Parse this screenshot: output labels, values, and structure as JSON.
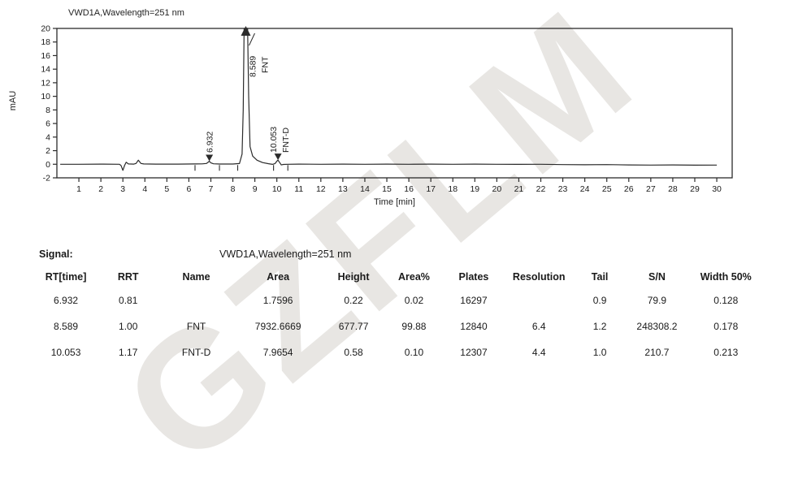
{
  "watermark": {
    "text": "GZFLM",
    "color": "#b2aba2"
  },
  "chart": {
    "title": "VWD1A,Wavelength=251 nm",
    "ylabel": "mAU",
    "xlabel": "Time [min]"
  },
  "chart_data": {
    "type": "line",
    "title": "VWD1A,Wavelength=251 nm",
    "xlabel": "Time [min]",
    "ylabel": "mAU",
    "xlim": [
      0,
      30.7
    ],
    "ylim": [
      -2,
      20
    ],
    "xticks": [
      1,
      2,
      3,
      4,
      5,
      6,
      7,
      8,
      9,
      10,
      11,
      12,
      13,
      14,
      15,
      16,
      17,
      18,
      19,
      20,
      21,
      22,
      23,
      24,
      25,
      26,
      27,
      28,
      29,
      30
    ],
    "yticks": [
      20,
      18,
      16,
      14,
      12,
      10,
      8,
      6,
      4,
      2,
      0,
      -2
    ],
    "grid": false,
    "line_color": "#2b2b2b",
    "trace": [
      [
        0.15,
        0
      ],
      [
        1,
        0
      ],
      [
        2,
        0.02
      ],
      [
        2.85,
        0
      ],
      [
        2.92,
        -0.2
      ],
      [
        3.0,
        -0.9
      ],
      [
        3.08,
        -0.15
      ],
      [
        3.15,
        0.3
      ],
      [
        3.25,
        0.05
      ],
      [
        3.5,
        0.02
      ],
      [
        3.6,
        0.12
      ],
      [
        3.7,
        0.6
      ],
      [
        3.82,
        0.12
      ],
      [
        3.95,
        0.04
      ],
      [
        4.5,
        0.02
      ],
      [
        5.5,
        0.02
      ],
      [
        6.3,
        0.05
      ],
      [
        6.6,
        0.06
      ],
      [
        6.8,
        0.12
      ],
      [
        6.88,
        0.3
      ],
      [
        6.93,
        0.45
      ],
      [
        7.0,
        0.2
      ],
      [
        7.12,
        0.07
      ],
      [
        7.4,
        0.03
      ],
      [
        8.0,
        0.03
      ],
      [
        8.3,
        0.1
      ],
      [
        8.42,
        1.5
      ],
      [
        8.47,
        8
      ],
      [
        8.51,
        60
      ],
      [
        8.67,
        60
      ],
      [
        8.72,
        10
      ],
      [
        8.78,
        2.6
      ],
      [
        8.9,
        1.2
      ],
      [
        9.1,
        0.6
      ],
      [
        9.35,
        0.25
      ],
      [
        9.62,
        0.08
      ],
      [
        9.8,
        -0.02
      ],
      [
        9.92,
        0.1
      ],
      [
        10.0,
        0.45
      ],
      [
        10.05,
        0.62
      ],
      [
        10.12,
        0.3
      ],
      [
        10.2,
        -0.1
      ],
      [
        10.3,
        -0.03
      ],
      [
        10.5,
        0
      ],
      [
        11,
        0.02
      ],
      [
        12,
        0
      ],
      [
        13,
        0.02
      ],
      [
        14,
        0
      ],
      [
        15,
        0.02
      ],
      [
        16,
        0
      ],
      [
        17,
        0.02
      ],
      [
        18,
        0
      ],
      [
        19,
        0.02
      ],
      [
        20,
        0
      ],
      [
        21,
        -0.02
      ],
      [
        22,
        0
      ],
      [
        23,
        -0.05
      ],
      [
        24,
        -0.08
      ],
      [
        25,
        -0.05
      ],
      [
        26,
        -0.1
      ],
      [
        27,
        -0.12
      ],
      [
        28,
        -0.1
      ],
      [
        29,
        -0.13
      ],
      [
        30,
        -0.12
      ]
    ],
    "integration_ticks": [
      6.28,
      7.39,
      8.22,
      9.85,
      10.5
    ],
    "peaks": [
      {
        "rt": 6.932,
        "label": "6.932",
        "name": "",
        "tip": 0.45,
        "marker": "down"
      },
      {
        "rt": 8.589,
        "label": "8.589",
        "name": "FNT",
        "tip": 20,
        "marker": "up"
      },
      {
        "rt": 10.053,
        "label": "10.053",
        "name": "FNT-D",
        "tip": 0.62,
        "marker": "down"
      }
    ]
  },
  "table": {
    "signal_label": "Signal:",
    "signal_value": "VWD1A,Wavelength=251 nm",
    "columns": [
      "RT[time]",
      "RRT",
      "Name",
      "Area",
      "Height",
      "Area%",
      "Plates",
      "Resolution",
      "Tail",
      "S/N",
      "Width 50%"
    ],
    "rows": [
      [
        "6.932",
        "0.81",
        "",
        "1.7596",
        "0.22",
        "0.02",
        "16297",
        "",
        "0.9",
        "79.9",
        "0.128"
      ],
      [
        "8.589",
        "1.00",
        "FNT",
        "7932.6669",
        "677.77",
        "99.88",
        "12840",
        "6.4",
        "1.2",
        "248308.2",
        "0.178"
      ],
      [
        "10.053",
        "1.17",
        "FNT-D",
        "7.9654",
        "0.58",
        "0.10",
        "12307",
        "4.4",
        "1.0",
        "210.7",
        "0.213"
      ]
    ]
  }
}
